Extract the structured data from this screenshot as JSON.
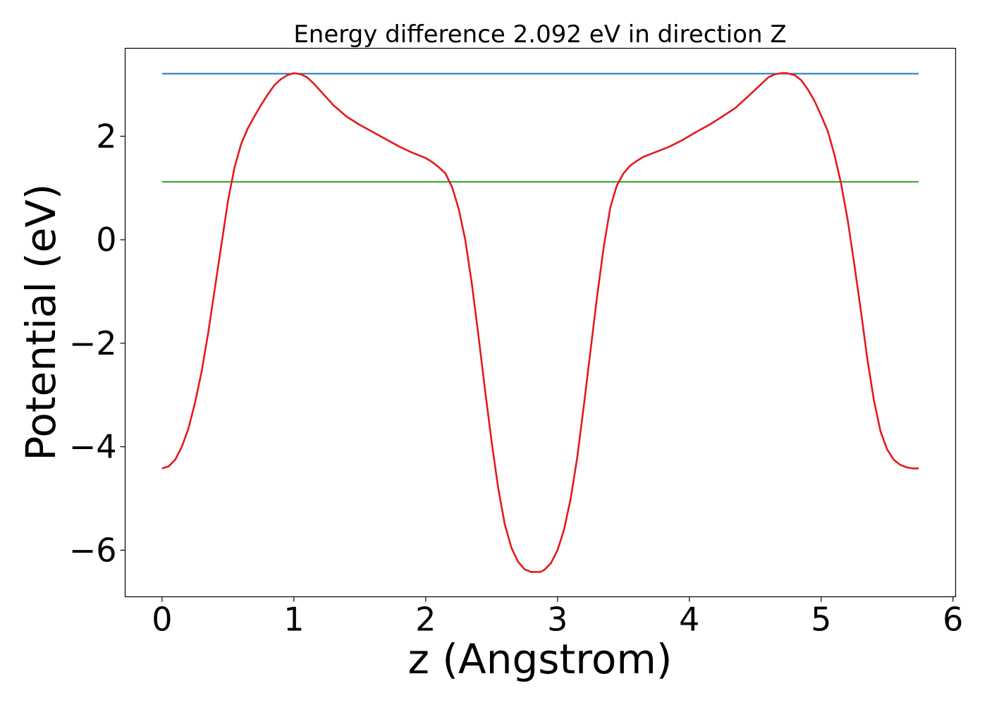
{
  "chart_data": {
    "type": "line",
    "title": "Energy difference 2.092 eV in direction Z",
    "xlabel": "z (Angstrom)",
    "ylabel": "Potential (eV)",
    "xlim": [
      -0.28,
      6.02
    ],
    "ylim": [
      -6.9,
      3.7
    ],
    "xticks": [
      0,
      1,
      2,
      3,
      4,
      5,
      6
    ],
    "xtick_labels": [
      "0",
      "1",
      "2",
      "3",
      "4",
      "5",
      "6"
    ],
    "yticks": [
      -6,
      -4,
      -2,
      0,
      2
    ],
    "ytick_labels": [
      "−6",
      "−4",
      "−2",
      "0",
      "2"
    ],
    "grid": false,
    "legend": "none",
    "series": [
      {
        "color": "#1f77b4",
        "x": [
          0,
          5.74
        ],
        "y": [
          3.21,
          3.21
        ]
      },
      {
        "color": "#2ca02c",
        "x": [
          0,
          5.74
        ],
        "y": [
          1.12,
          1.12
        ]
      },
      {
        "color": "#e31a1c",
        "x": [
          0.0,
          0.05,
          0.1,
          0.15,
          0.2,
          0.25,
          0.3,
          0.35,
          0.4,
          0.45,
          0.5,
          0.55,
          0.6,
          0.65,
          0.7,
          0.75,
          0.8,
          0.85,
          0.9,
          0.95,
          1.0,
          1.05,
          1.1,
          1.15,
          1.2,
          1.3,
          1.4,
          1.5,
          1.6,
          1.7,
          1.8,
          1.9,
          2.0,
          2.05,
          2.1,
          2.15,
          2.2,
          2.25,
          2.3,
          2.35,
          2.4,
          2.45,
          2.5,
          2.55,
          2.6,
          2.65,
          2.7,
          2.75,
          2.8,
          2.85,
          2.87,
          2.9,
          2.95,
          3.0,
          3.05,
          3.1,
          3.15,
          3.2,
          3.25,
          3.3,
          3.35,
          3.4,
          3.45,
          3.5,
          3.55,
          3.6,
          3.65,
          3.75,
          3.85,
          3.95,
          4.05,
          4.15,
          4.25,
          4.35,
          4.45,
          4.55,
          4.6,
          4.65,
          4.7,
          4.74,
          4.8,
          4.85,
          4.9,
          4.95,
          5.0,
          5.05,
          5.1,
          5.15,
          5.2,
          5.25,
          5.3,
          5.35,
          5.4,
          5.45,
          5.5,
          5.55,
          5.6,
          5.65,
          5.7,
          5.74
        ],
        "y": [
          -4.42,
          -4.38,
          -4.25,
          -4.0,
          -3.65,
          -3.15,
          -2.55,
          -1.8,
          -0.95,
          -0.1,
          0.75,
          1.4,
          1.85,
          2.15,
          2.38,
          2.6,
          2.8,
          2.98,
          3.1,
          3.18,
          3.22,
          3.2,
          3.14,
          3.02,
          2.88,
          2.6,
          2.38,
          2.22,
          2.08,
          1.94,
          1.8,
          1.68,
          1.58,
          1.5,
          1.4,
          1.28,
          1.02,
          0.6,
          0.0,
          -0.85,
          -1.85,
          -2.9,
          -3.9,
          -4.8,
          -5.5,
          -5.95,
          -6.22,
          -6.37,
          -6.42,
          -6.42,
          -6.42,
          -6.38,
          -6.25,
          -6.0,
          -5.6,
          -5.0,
          -4.2,
          -3.2,
          -2.15,
          -1.1,
          -0.15,
          0.62,
          1.05,
          1.28,
          1.43,
          1.52,
          1.6,
          1.7,
          1.8,
          1.93,
          2.08,
          2.22,
          2.38,
          2.55,
          2.78,
          3.02,
          3.14,
          3.2,
          3.22,
          3.22,
          3.18,
          3.08,
          2.9,
          2.68,
          2.4,
          2.1,
          1.65,
          1.1,
          0.4,
          -0.45,
          -1.35,
          -2.3,
          -3.1,
          -3.7,
          -4.05,
          -4.25,
          -4.35,
          -4.4,
          -4.42,
          -4.42
        ]
      }
    ]
  }
}
